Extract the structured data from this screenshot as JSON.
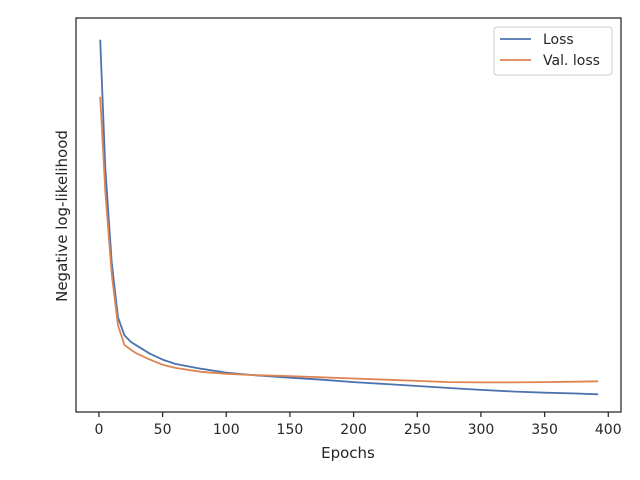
{
  "chart_data": {
    "type": "line",
    "title": "",
    "xlabel": "Epochs",
    "ylabel": "Negative log-likelihood",
    "xlim": [
      -18,
      410
    ],
    "ylim": [
      0,
      1
    ],
    "x_ticks": [
      0,
      50,
      100,
      150,
      200,
      250,
      300,
      350,
      400
    ],
    "y_ticks": [],
    "grid": false,
    "legend_position": "top-right",
    "legend_entries": [
      "Loss",
      "Val. loss"
    ],
    "series": [
      {
        "name": "Loss",
        "color": "#4c72b0",
        "x": [
          1,
          5,
          10,
          15,
          20,
          25,
          30,
          40,
          50,
          60,
          80,
          100,
          120,
          150,
          175,
          200,
          225,
          250,
          275,
          300,
          325,
          350,
          375,
          392
        ],
        "y": [
          0.945,
          0.62,
          0.38,
          0.24,
          0.195,
          0.178,
          0.168,
          0.148,
          0.133,
          0.122,
          0.11,
          0.1,
          0.094,
          0.087,
          0.082,
          0.076,
          0.071,
          0.066,
          0.061,
          0.056,
          0.052,
          0.049,
          0.047,
          0.045
        ]
      },
      {
        "name": "Val. loss",
        "color": "#dd8452",
        "x": [
          1,
          5,
          10,
          15,
          20,
          25,
          30,
          40,
          50,
          60,
          80,
          100,
          120,
          150,
          175,
          200,
          225,
          250,
          275,
          300,
          325,
          350,
          375,
          392
        ],
        "y": [
          0.8,
          0.56,
          0.35,
          0.22,
          0.17,
          0.158,
          0.148,
          0.133,
          0.12,
          0.112,
          0.102,
          0.097,
          0.094,
          0.091,
          0.088,
          0.085,
          0.082,
          0.079,
          0.076,
          0.075,
          0.075,
          0.076,
          0.077,
          0.078
        ]
      }
    ]
  }
}
